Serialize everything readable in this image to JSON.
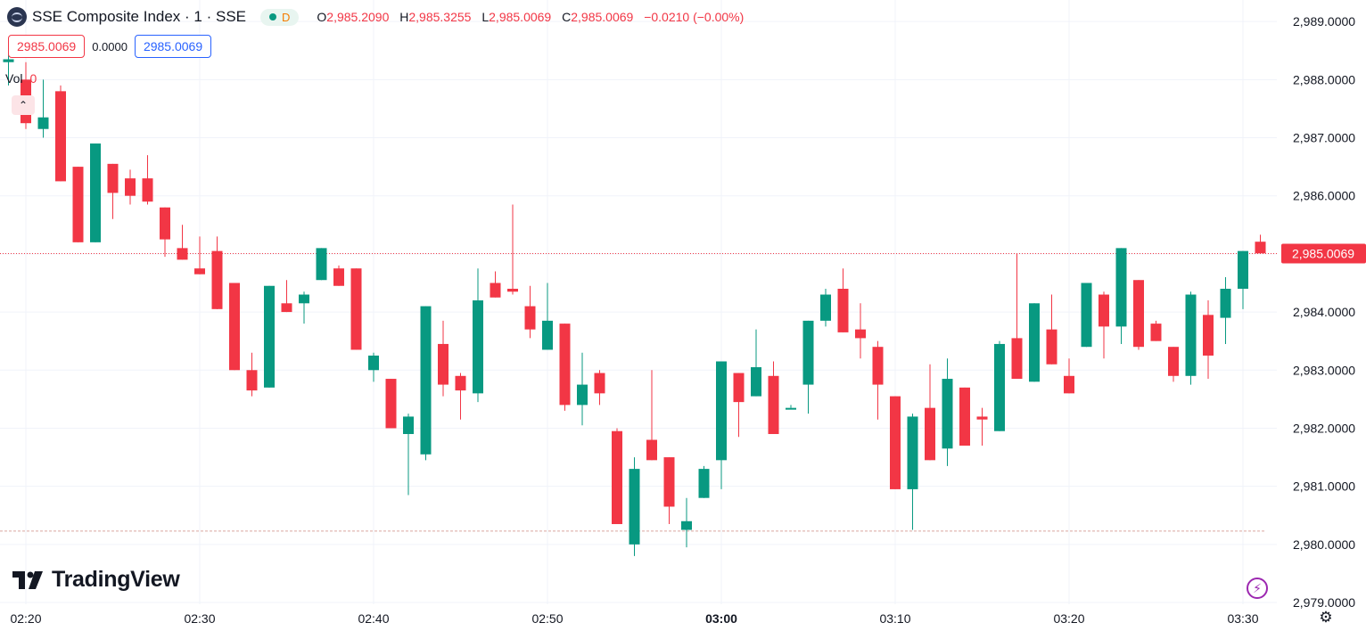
{
  "legend": {
    "symbol_title": "SSE Composite Index · 1 · SSE",
    "session_badge": "D",
    "open_label": "O",
    "open_value": "2,985.2090",
    "high_label": "H",
    "high_value": "2,985.3255",
    "low_label": "L",
    "low_value": "2,985.0069",
    "close_label": "C",
    "close_value": "2,985.0069",
    "change": "−0.0210 (−0.00%)"
  },
  "price_boxes": {
    "sell": "2985.0069",
    "spread": "0.0000",
    "buy": "2985.0069"
  },
  "volume": {
    "label": "Vol",
    "value": "0"
  },
  "branding": "TradingView",
  "colors": {
    "up": "#089981",
    "down": "#f23645",
    "grid": "#f0f3fa",
    "last_price_line": "#f23645"
  },
  "icons": {
    "collapse": "chevron-up-icon",
    "quick_action": "lightning-icon",
    "settings": "gear-icon"
  },
  "chart_data": {
    "type": "candlestick",
    "title": "SSE Composite Index · 1 · SSE",
    "y_axis": {
      "ylim": [
        2978.97,
        2989.37
      ],
      "ticks": [
        2989,
        2988,
        2987,
        2986,
        2985,
        2984,
        2983,
        2982,
        2981,
        2980,
        2979
      ],
      "tick_labels": [
        "2,989.0000",
        "2,988.0000",
        "2,987.0000",
        "2,986.0000",
        "2,985.0000",
        "2,984.0000",
        "2,983.0000",
        "2,982.0000",
        "2,981.0000",
        "2,980.0000",
        "2,979.0000"
      ],
      "position": "right"
    },
    "x_axis": {
      "start_time": "02:19",
      "tick_labels": [
        "02:20",
        "02:30",
        "02:40",
        "02:50",
        "03:00",
        "03:10",
        "03:20",
        "03:30"
      ],
      "tick_minutes": [
        1,
        11,
        21,
        31,
        41,
        51,
        61,
        71
      ],
      "bold_tick": "03:00"
    },
    "last_price": 2985.0069,
    "last_price_label": "2,985.0069",
    "reference_line": 2980.23,
    "grid": true,
    "candles": [
      {
        "t": "02:19",
        "o": 2988.3,
        "h": 2988.7,
        "l": 2987.9,
        "c": 2988.35
      },
      {
        "t": "02:20",
        "o": 2988.0,
        "h": 2988.3,
        "l": 2987.15,
        "c": 2987.25
      },
      {
        "t": "02:21",
        "o": 2987.15,
        "h": 2988.0,
        "l": 2987.0,
        "c": 2987.35
      },
      {
        "t": "02:22",
        "o": 2987.8,
        "h": 2987.9,
        "l": 2986.25,
        "c": 2986.25
      },
      {
        "t": "02:23",
        "o": 2986.5,
        "h": 2986.5,
        "l": 2985.2,
        "c": 2985.2
      },
      {
        "t": "02:24",
        "o": 2985.2,
        "h": 2986.9,
        "l": 2985.2,
        "c": 2986.9
      },
      {
        "t": "02:25",
        "o": 2986.55,
        "h": 2986.55,
        "l": 2985.6,
        "c": 2986.05
      },
      {
        "t": "02:26",
        "o": 2986.3,
        "h": 2986.45,
        "l": 2985.85,
        "c": 2986.0
      },
      {
        "t": "02:27",
        "o": 2986.3,
        "h": 2986.7,
        "l": 2985.85,
        "c": 2985.9
      },
      {
        "t": "02:28",
        "o": 2985.8,
        "h": 2985.8,
        "l": 2984.95,
        "c": 2985.25
      },
      {
        "t": "02:29",
        "o": 2985.1,
        "h": 2985.5,
        "l": 2984.9,
        "c": 2984.9
      },
      {
        "t": "02:30",
        "o": 2984.75,
        "h": 2985.3,
        "l": 2984.65,
        "c": 2984.65
      },
      {
        "t": "02:31",
        "o": 2985.05,
        "h": 2985.3,
        "l": 2984.05,
        "c": 2984.05
      },
      {
        "t": "02:32",
        "o": 2984.5,
        "h": 2984.5,
        "l": 2983.0,
        "c": 2983.0
      },
      {
        "t": "02:33",
        "o": 2983.0,
        "h": 2983.3,
        "l": 2982.55,
        "c": 2982.65
      },
      {
        "t": "02:34",
        "o": 2982.7,
        "h": 2984.45,
        "l": 2982.7,
        "c": 2984.45
      },
      {
        "t": "02:35",
        "o": 2984.15,
        "h": 2984.55,
        "l": 2984.0,
        "c": 2984.0
      },
      {
        "t": "02:36",
        "o": 2984.15,
        "h": 2984.35,
        "l": 2983.8,
        "c": 2984.3
      },
      {
        "t": "02:37",
        "o": 2984.55,
        "h": 2985.1,
        "l": 2984.55,
        "c": 2985.1
      },
      {
        "t": "02:38",
        "o": 2984.75,
        "h": 2984.8,
        "l": 2984.45,
        "c": 2984.45
      },
      {
        "t": "02:39",
        "o": 2984.75,
        "h": 2984.75,
        "l": 2983.35,
        "c": 2983.35
      },
      {
        "t": "02:40",
        "o": 2983.0,
        "h": 2983.3,
        "l": 2982.8,
        "c": 2983.25
      },
      {
        "t": "02:41",
        "o": 2982.85,
        "h": 2982.85,
        "l": 2982.0,
        "c": 2982.0
      },
      {
        "t": "02:42",
        "o": 2981.9,
        "h": 2982.25,
        "l": 2980.85,
        "c": 2982.2
      },
      {
        "t": "02:43",
        "o": 2981.55,
        "h": 2984.1,
        "l": 2981.45,
        "c": 2984.1
      },
      {
        "t": "02:44",
        "o": 2983.45,
        "h": 2983.85,
        "l": 2982.55,
        "c": 2982.75
      },
      {
        "t": "02:45",
        "o": 2982.9,
        "h": 2982.95,
        "l": 2982.15,
        "c": 2982.65
      },
      {
        "t": "02:46",
        "o": 2982.6,
        "h": 2984.75,
        "l": 2982.45,
        "c": 2984.2
      },
      {
        "t": "02:47",
        "o": 2984.5,
        "h": 2984.7,
        "l": 2984.25,
        "c": 2984.25
      },
      {
        "t": "02:48",
        "o": 2984.4,
        "h": 2985.85,
        "l": 2984.3,
        "c": 2984.35
      },
      {
        "t": "02:49",
        "o": 2984.1,
        "h": 2984.45,
        "l": 2983.55,
        "c": 2983.7
      },
      {
        "t": "02:50",
        "o": 2983.35,
        "h": 2984.5,
        "l": 2983.35,
        "c": 2983.85
      },
      {
        "t": "02:51",
        "o": 2983.8,
        "h": 2983.8,
        "l": 2982.3,
        "c": 2982.4
      },
      {
        "t": "02:52",
        "o": 2982.4,
        "h": 2983.3,
        "l": 2982.05,
        "c": 2982.75
      },
      {
        "t": "02:53",
        "o": 2982.95,
        "h": 2983.0,
        "l": 2982.4,
        "c": 2982.6
      },
      {
        "t": "02:54",
        "o": 2981.95,
        "h": 2982.0,
        "l": 2980.35,
        "c": 2980.35
      },
      {
        "t": "02:55",
        "o": 2980.0,
        "h": 2981.5,
        "l": 2979.8,
        "c": 2981.3
      },
      {
        "t": "02:56",
        "o": 2981.8,
        "h": 2983.0,
        "l": 2981.45,
        "c": 2981.45
      },
      {
        "t": "02:57",
        "o": 2981.5,
        "h": 2981.5,
        "l": 2980.35,
        "c": 2980.65
      },
      {
        "t": "02:58",
        "o": 2980.25,
        "h": 2980.8,
        "l": 2979.95,
        "c": 2980.4
      },
      {
        "t": "02:59",
        "o": 2980.8,
        "h": 2981.35,
        "l": 2980.8,
        "c": 2981.3
      },
      {
        "t": "03:00",
        "o": 2981.45,
        "h": 2983.15,
        "l": 2980.95,
        "c": 2983.15
      },
      {
        "t": "03:01",
        "o": 2982.95,
        "h": 2982.95,
        "l": 2981.85,
        "c": 2982.45
      },
      {
        "t": "03:02",
        "o": 2982.55,
        "h": 2983.7,
        "l": 2982.55,
        "c": 2983.05
      },
      {
        "t": "03:03",
        "o": 2982.9,
        "h": 2983.15,
        "l": 2981.9,
        "c": 2981.9
      },
      {
        "t": "03:04",
        "o": 2982.35,
        "h": 2982.4,
        "l": 2982.35,
        "c": 2982.35
      },
      {
        "t": "03:05",
        "o": 2982.75,
        "h": 2983.85,
        "l": 2982.25,
        "c": 2983.85
      },
      {
        "t": "03:06",
        "o": 2983.85,
        "h": 2984.4,
        "l": 2983.75,
        "c": 2984.3
      },
      {
        "t": "03:07",
        "o": 2984.4,
        "h": 2984.75,
        "l": 2983.65,
        "c": 2983.65
      },
      {
        "t": "03:08",
        "o": 2983.7,
        "h": 2984.15,
        "l": 2983.2,
        "c": 2983.55
      },
      {
        "t": "03:09",
        "o": 2983.4,
        "h": 2983.5,
        "l": 2982.15,
        "c": 2982.75
      },
      {
        "t": "03:10",
        "o": 2982.55,
        "h": 2982.55,
        "l": 2980.95,
        "c": 2980.95
      },
      {
        "t": "03:11",
        "o": 2980.95,
        "h": 2982.25,
        "l": 2980.25,
        "c": 2982.2
      },
      {
        "t": "03:12",
        "o": 2982.35,
        "h": 2983.1,
        "l": 2981.45,
        "c": 2981.45
      },
      {
        "t": "03:13",
        "o": 2981.65,
        "h": 2983.2,
        "l": 2981.35,
        "c": 2982.85
      },
      {
        "t": "03:14",
        "o": 2982.7,
        "h": 2982.7,
        "l": 2981.7,
        "c": 2981.7
      },
      {
        "t": "03:15",
        "o": 2982.2,
        "h": 2982.35,
        "l": 2981.7,
        "c": 2982.15
      },
      {
        "t": "03:16",
        "o": 2981.95,
        "h": 2983.5,
        "l": 2981.95,
        "c": 2983.45
      },
      {
        "t": "03:17",
        "o": 2983.55,
        "h": 2985.0,
        "l": 2982.85,
        "c": 2982.85
      },
      {
        "t": "03:18",
        "o": 2982.8,
        "h": 2984.15,
        "l": 2982.8,
        "c": 2984.15
      },
      {
        "t": "03:19",
        "o": 2983.7,
        "h": 2984.3,
        "l": 2983.1,
        "c": 2983.1
      },
      {
        "t": "03:20",
        "o": 2982.9,
        "h": 2983.2,
        "l": 2982.6,
        "c": 2982.6
      },
      {
        "t": "03:21",
        "o": 2983.4,
        "h": 2984.5,
        "l": 2983.4,
        "c": 2984.5
      },
      {
        "t": "03:22",
        "o": 2984.3,
        "h": 2984.35,
        "l": 2983.2,
        "c": 2983.75
      },
      {
        "t": "03:23",
        "o": 2983.75,
        "h": 2985.1,
        "l": 2983.45,
        "c": 2985.1
      },
      {
        "t": "03:24",
        "o": 2984.55,
        "h": 2984.55,
        "l": 2983.35,
        "c": 2983.4
      },
      {
        "t": "03:25",
        "o": 2983.8,
        "h": 2983.85,
        "l": 2983.5,
        "c": 2983.5
      },
      {
        "t": "03:26",
        "o": 2983.4,
        "h": 2983.4,
        "l": 2982.8,
        "c": 2982.9
      },
      {
        "t": "03:27",
        "o": 2982.9,
        "h": 2984.35,
        "l": 2982.75,
        "c": 2984.3
      },
      {
        "t": "03:28",
        "o": 2983.95,
        "h": 2984.2,
        "l": 2982.85,
        "c": 2983.25
      },
      {
        "t": "03:29",
        "o": 2983.9,
        "h": 2984.6,
        "l": 2983.45,
        "c": 2984.4
      },
      {
        "t": "03:30",
        "o": 2984.4,
        "h": 2985.05,
        "l": 2984.05,
        "c": 2985.05
      },
      {
        "t": "03:31",
        "o": 2985.21,
        "h": 2985.33,
        "l": 2985.01,
        "c": 2985.01
      }
    ]
  }
}
